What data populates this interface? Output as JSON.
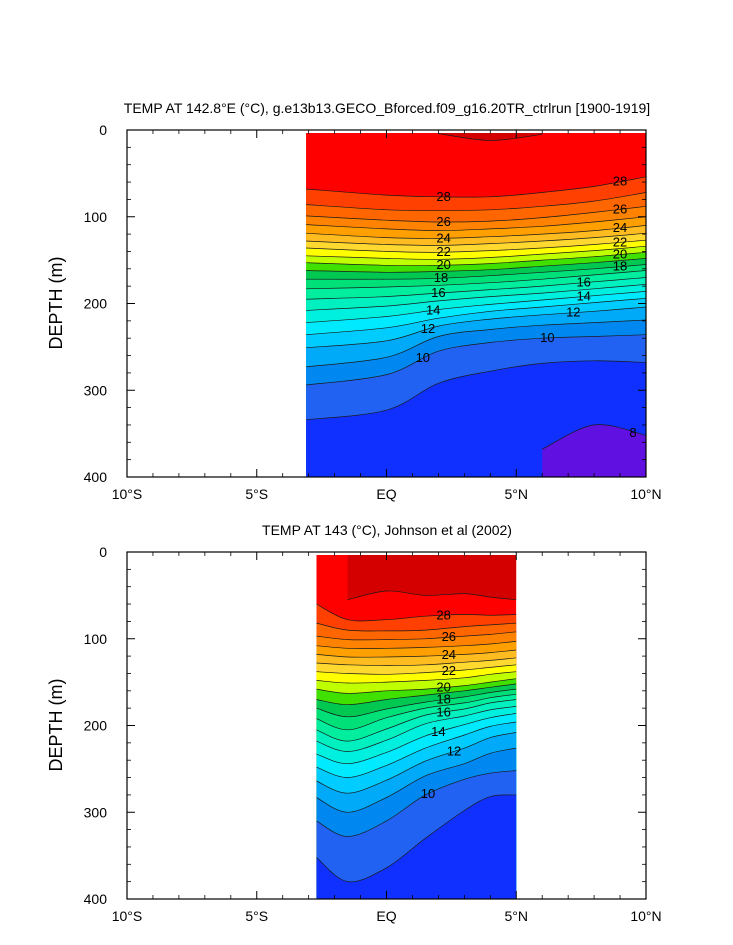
{
  "chart_data": [
    {
      "type": "contour",
      "title": "TEMP AT 142.8°E (°C), g.e13b13.GECO_Bforced.f09_g16.20TR_ctrlrun [1900-1919]",
      "ylabel": "DEPTH (m)",
      "xlim": [
        -10,
        10
      ],
      "ylim": [
        400,
        0
      ],
      "x_ticks": [
        -10,
        -5,
        0,
        5,
        10
      ],
      "x_tick_labels": [
        "10°S",
        "5°S",
        "EQ",
        "5°N",
        "10°N"
      ],
      "y_ticks": [
        0,
        100,
        200,
        300,
        400
      ],
      "y_tick_labels": [
        "0",
        "100",
        "200",
        "300",
        "400"
      ],
      "data_xrange": [
        -3.1,
        10
      ],
      "levels": [
        8,
        9,
        10,
        11,
        12,
        13,
        14,
        15,
        16,
        17,
        18,
        19,
        20,
        21,
        22,
        23,
        24,
        25,
        26,
        27,
        28,
        29
      ],
      "isotherm_depths_x": [
        -3.1,
        0,
        2,
        4,
        6,
        8,
        10
      ],
      "isotherms": [
        {
          "temp": 29,
          "depths": [
            null,
            null,
            4,
            12,
            5,
            null,
            null
          ]
        },
        {
          "temp": 28,
          "depths": [
            68,
            75,
            77,
            77,
            72,
            65,
            54
          ]
        },
        {
          "temp": 27,
          "depths": [
            86,
            92,
            93,
            92,
            88,
            82,
            72
          ]
        },
        {
          "temp": 26,
          "depths": [
            99,
            104,
            106,
            105,
            101,
            95,
            88
          ]
        },
        {
          "temp": 25,
          "depths": [
            109,
            114,
            116,
            114,
            111,
            106,
            100
          ]
        },
        {
          "temp": 24,
          "depths": [
            119,
            124,
            125,
            123,
            120,
            116,
            110
          ]
        },
        {
          "temp": 23,
          "depths": [
            128,
            132,
            133,
            131,
            128,
            124,
            119
          ]
        },
        {
          "temp": 22,
          "depths": [
            136,
            140,
            141,
            139,
            136,
            132,
            127
          ]
        },
        {
          "temp": 21,
          "depths": [
            145,
            148,
            149,
            147,
            143,
            139,
            134
          ]
        },
        {
          "temp": 20,
          "depths": [
            153,
            156,
            156,
            154,
            150,
            146,
            141
          ]
        },
        {
          "temp": 19,
          "depths": [
            162,
            164,
            163,
            161,
            157,
            153,
            148
          ]
        },
        {
          "temp": 18,
          "depths": [
            172,
            172,
            171,
            168,
            164,
            160,
            155
          ]
        },
        {
          "temp": 17,
          "depths": [
            183,
            181,
            179,
            176,
            172,
            167,
            162
          ]
        },
        {
          "temp": 16,
          "depths": [
            195,
            192,
            188,
            184,
            180,
            175,
            170
          ]
        },
        {
          "temp": 15,
          "depths": [
            208,
            203,
            197,
            192,
            188,
            183,
            178
          ]
        },
        {
          "temp": 14,
          "depths": [
            222,
            215,
            207,
            201,
            196,
            191,
            186
          ]
        },
        {
          "temp": 13,
          "depths": [
            236,
            228,
            217,
            209,
            204,
            199,
            194
          ]
        },
        {
          "temp": 12,
          "depths": [
            251,
            243,
            226,
            218,
            213,
            209,
            204
          ]
        },
        {
          "temp": 11,
          "depths": [
            273,
            262,
            238,
            230,
            225,
            222,
            219
          ]
        },
        {
          "temp": 10,
          "depths": [
            294,
            282,
            255,
            245,
            240,
            238,
            236
          ]
        },
        {
          "temp": 9,
          "depths": [
            334,
            323,
            292,
            278,
            269,
            266,
            268
          ]
        },
        {
          "temp": 8,
          "depths": [
            null,
            null,
            null,
            null,
            368,
            340,
            352
          ]
        }
      ],
      "contour_labels": [
        "28",
        "26",
        "24",
        "22",
        "20",
        "18",
        "16",
        "14",
        "12",
        "10",
        "28",
        "26",
        "24",
        "22",
        "20",
        "18",
        "16",
        "14",
        "12",
        "10",
        "8"
      ]
    },
    {
      "type": "contour",
      "title": "TEMP AT 143 (°C), Johnson et al (2002)",
      "ylabel": "DEPTH (m)",
      "xlim": [
        -10,
        10
      ],
      "ylim": [
        400,
        0
      ],
      "x_ticks": [
        -10,
        -5,
        0,
        5,
        10
      ],
      "x_tick_labels": [
        "10°S",
        "5°S",
        "EQ",
        "5°N",
        "10°N"
      ],
      "y_ticks": [
        0,
        100,
        200,
        300,
        400
      ],
      "y_tick_labels": [
        "0",
        "100",
        "200",
        "300",
        "400"
      ],
      "data_xrange": [
        -2.7,
        5
      ],
      "levels": [
        9,
        10,
        11,
        12,
        13,
        14,
        15,
        16,
        17,
        18,
        19,
        20,
        21,
        22,
        23,
        24,
        25,
        26,
        27,
        28,
        29
      ],
      "isotherm_depths_x": [
        -2.7,
        -1.5,
        0,
        1.5,
        3,
        4,
        5
      ],
      "isotherms": [
        {
          "temp": 29,
          "depths": [
            null,
            55,
            45,
            50,
            48,
            52,
            55
          ]
        },
        {
          "temp": 28,
          "depths": [
            60,
            78,
            78,
            74,
            72,
            73,
            72
          ]
        },
        {
          "temp": 27,
          "depths": [
            82,
            90,
            91,
            90,
            86,
            84,
            82
          ]
        },
        {
          "temp": 26,
          "depths": [
            97,
            101,
            101,
            100,
            97,
            95,
            92
          ]
        },
        {
          "temp": 25,
          "depths": [
            108,
            111,
            111,
            110,
            108,
            106,
            103
          ]
        },
        {
          "temp": 24,
          "depths": [
            118,
            121,
            121,
            120,
            118,
            116,
            113
          ]
        },
        {
          "temp": 23,
          "depths": [
            128,
            130,
            131,
            130,
            127,
            125,
            122
          ]
        },
        {
          "temp": 22,
          "depths": [
            138,
            140,
            141,
            139,
            136,
            133,
            130
          ]
        },
        {
          "temp": 21,
          "depths": [
            148,
            151,
            150,
            148,
            145,
            141,
            138
          ]
        },
        {
          "temp": 20,
          "depths": [
            158,
            163,
            160,
            158,
            154,
            150,
            146
          ]
        },
        {
          "temp": 19,
          "depths": [
            170,
            176,
            170,
            165,
            160,
            156,
            152
          ]
        },
        {
          "temp": 18,
          "depths": [
            180,
            190,
            181,
            173,
            167,
            162,
            158
          ]
        },
        {
          "temp": 17,
          "depths": [
            192,
            205,
            191,
            180,
            174,
            168,
            164
          ]
        },
        {
          "temp": 16,
          "depths": [
            205,
            218,
            204,
            188,
            181,
            174,
            170
          ]
        },
        {
          "temp": 15,
          "depths": [
            218,
            230,
            217,
            198,
            189,
            182,
            178
          ]
        },
        {
          "temp": 14,
          "depths": [
            233,
            244,
            231,
            212,
            199,
            191,
            186
          ]
        },
        {
          "temp": 13,
          "depths": [
            248,
            260,
            246,
            226,
            211,
            201,
            196
          ]
        },
        {
          "temp": 12,
          "depths": [
            264,
            278,
            263,
            241,
            226,
            214,
            208
          ]
        },
        {
          "temp": 11,
          "depths": [
            283,
            300,
            283,
            258,
            244,
            232,
            226
          ]
        },
        {
          "temp": 10,
          "depths": [
            310,
            328,
            310,
            280,
            262,
            255,
            252
          ]
        },
        {
          "temp": 9,
          "depths": [
            352,
            380,
            364,
            330,
            298,
            282,
            280
          ]
        }
      ],
      "contour_labels": [
        "28",
        "26",
        "24",
        "22",
        "20",
        "18",
        "16",
        "14",
        "12",
        "10"
      ]
    }
  ]
}
